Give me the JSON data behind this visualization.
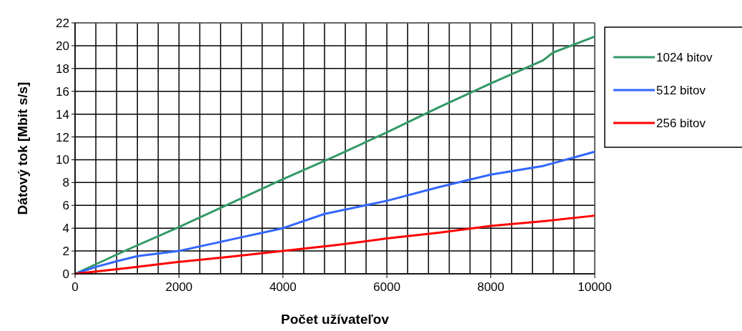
{
  "chart_data": {
    "type": "line",
    "xlabel": "Počet užívateľov",
    "ylabel": "Dátový tok [Mbit s/s]",
    "xlim": [
      0,
      10000
    ],
    "xticks": [
      0,
      {
        "value": 400,
        "label": null
      },
      {
        "value": 800,
        "label": null
      },
      {
        "value": 1200,
        "label": null
      },
      {
        "value": 1600,
        "label": null
      },
      2000,
      {
        "value": 2400,
        "label": null
      },
      {
        "value": 2800,
        "label": null
      },
      {
        "value": 3200,
        "label": null
      },
      {
        "value": 3600,
        "label": null
      },
      4000,
      {
        "value": 4400,
        "label": null
      },
      {
        "value": 4800,
        "label": null
      },
      {
        "value": 5200,
        "label": null
      },
      {
        "value": 5600,
        "label": null
      },
      6000,
      {
        "value": 6400,
        "label": null
      },
      {
        "value": 6800,
        "label": null
      },
      {
        "value": 7200,
        "label": null
      },
      {
        "value": 7600,
        "label": null
      },
      8000,
      {
        "value": 8400,
        "label": null
      },
      {
        "value": 8800,
        "label": null
      },
      {
        "value": 9200,
        "label": null
      },
      {
        "value": 9600,
        "label": null
      },
      10000
    ],
    "ylim": [
      0,
      22
    ],
    "yticks": [
      0,
      2,
      4,
      6,
      8,
      10,
      12,
      14,
      16,
      18,
      20,
      22
    ],
    "grid": true,
    "legend": "right",
    "marker": "none",
    "line_style": "solid",
    "series": [
      {
        "name": "1024 bitov",
        "color": "#339966",
        "x": [
          0,
          1000,
          2000,
          3000,
          4000,
          5000,
          6000,
          7000,
          8000,
          9000,
          9200,
          10000
        ],
        "values": [
          0,
          2.1,
          4.1,
          6.2,
          8.3,
          10.3,
          12.4,
          14.6,
          16.7,
          18.7,
          19.4,
          20.8
        ]
      },
      {
        "name": "512 bitov",
        "color": "#3366ff",
        "x": [
          0,
          400,
          800,
          1200,
          2000,
          3000,
          4000,
          4800,
          6000,
          7000,
          8000,
          9000,
          10000
        ],
        "values": [
          0,
          0.6,
          1.1,
          1.55,
          2.0,
          3.0,
          4.0,
          5.25,
          6.4,
          7.6,
          8.7,
          9.45,
          10.7
        ]
      },
      {
        "name": "256 bitov",
        "color": "#ff0000",
        "x": [
          0,
          500,
          1000,
          2000,
          3000,
          4000,
          5000,
          6000,
          7000,
          8000,
          9000,
          10000
        ],
        "values": [
          0,
          0.25,
          0.5,
          1.05,
          1.5,
          2.0,
          2.5,
          3.1,
          3.6,
          4.2,
          4.6,
          5.1
        ]
      }
    ]
  }
}
